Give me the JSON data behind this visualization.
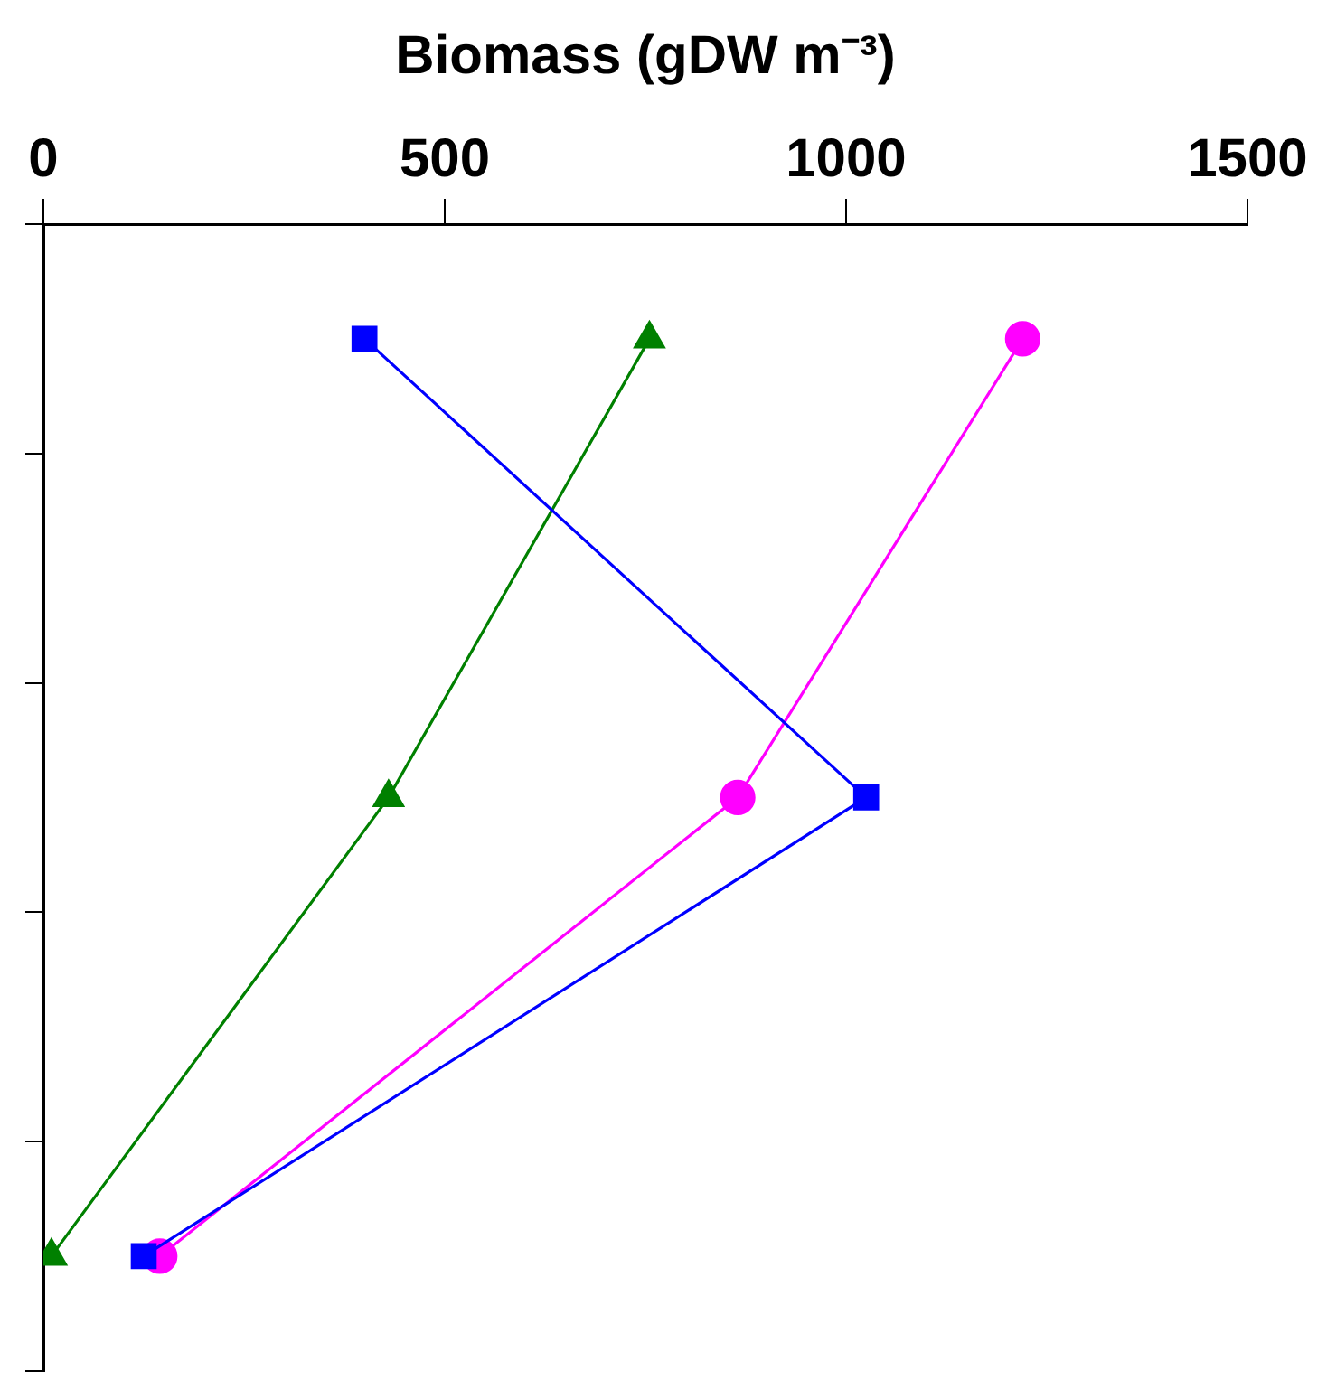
{
  "chart_data": {
    "type": "line",
    "orientation": "horizontal",
    "xlabel": "Biomass (gDW m⁻³)",
    "categories": [
      null,
      null,
      null
    ],
    "xlim": [
      0,
      1500
    ],
    "xticks": [
      0,
      500,
      1000,
      1500
    ],
    "grid": false,
    "legend": false,
    "tick_labels": "x",
    "line_style": "solid",
    "series": [
      {
        "color": "#0000ff",
        "marker": "square",
        "values": [
          400,
          1025,
          125
        ]
      },
      {
        "color": "#008000",
        "marker": "triangle",
        "values": [
          755,
          430,
          10
        ]
      },
      {
        "color": "#ff00ff",
        "marker": "circle",
        "values": [
          1220,
          865,
          145
        ]
      }
    ]
  }
}
